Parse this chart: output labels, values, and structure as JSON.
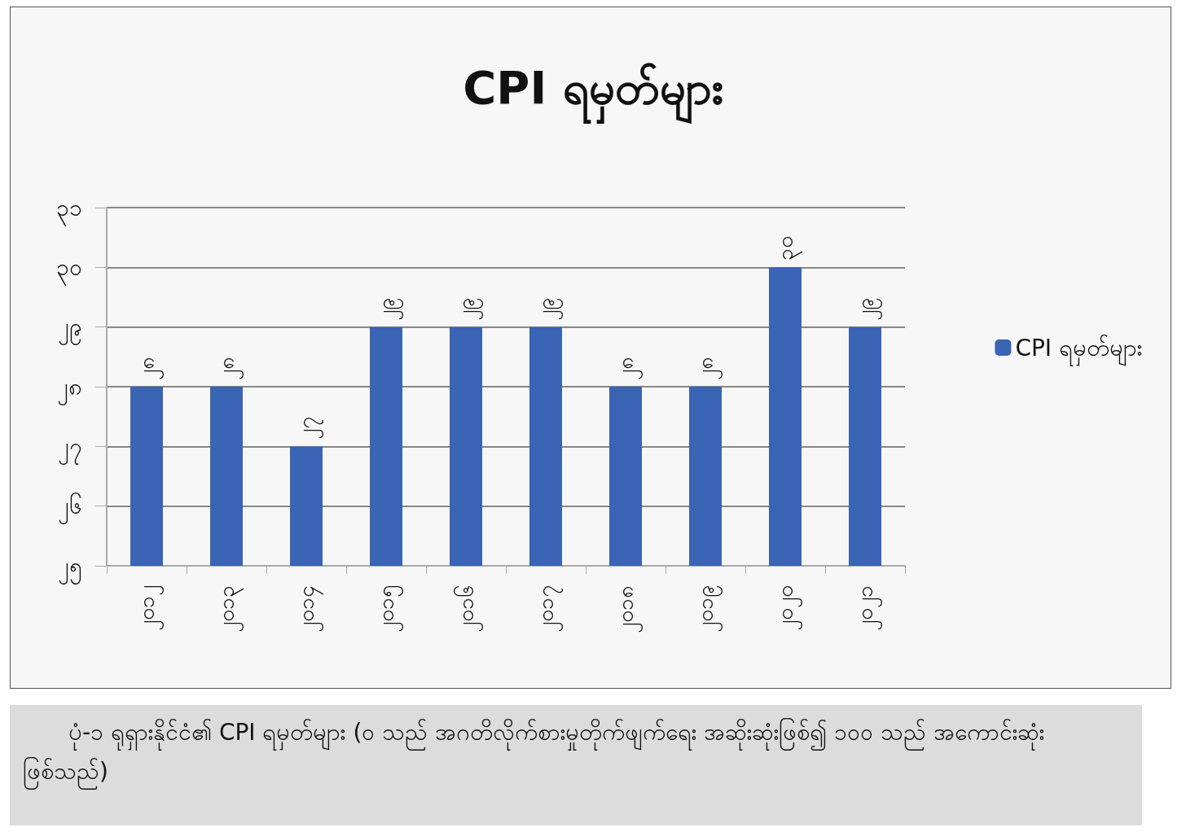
{
  "chart_data": {
    "type": "bar",
    "title": "CPI ရမှတ်များ",
    "categories": [
      "၂၀၁၂",
      "၂၀၁၃",
      "၂၀၁၄",
      "၂၀၁၅",
      "၂၀၁၆",
      "၂၀၁၇",
      "၂၀၁၈",
      "၂၀၁၉",
      "၂၀၂၀",
      "၂၀၂၁"
    ],
    "series": [
      {
        "name": "CPI ရမှတ်များ",
        "color": "#3a64b4",
        "values": [
          28,
          28,
          27,
          29,
          29,
          29,
          28,
          28,
          30,
          29
        ]
      }
    ],
    "ylim": [
      25,
      31
    ],
    "yticks": [
      {
        "value": 25,
        "label": "၂၅"
      },
      {
        "value": 26,
        "label": "၂၆"
      },
      {
        "value": 27,
        "label": "၂၇"
      },
      {
        "value": 28,
        "label": "၂၈"
      },
      {
        "value": 29,
        "label": "၂၉"
      },
      {
        "value": 30,
        "label": "၃၀"
      },
      {
        "value": 31,
        "label": "၃၁"
      }
    ],
    "value_labels": [
      "၂၈",
      "၂၈",
      "၂၇",
      "၂၉",
      "၂၉",
      "၂၉",
      "၂၈",
      "၂၈",
      "၃၀",
      "၂၉"
    ],
    "grid": "y",
    "legend": "right",
    "annotations": [
      "ပုံ-၁ ရုရှားနိုင်ငံ၏ CPI ရမှတ်များ (၀ သည် အဂတိလိုက်စားမှုတိုက်ဖျက်ရေး အဆိုးဆုံးဖြစ်၍ ၁၀၀ သည် အကောင်းဆုံးဖြစ်သည်)"
    ]
  }
}
